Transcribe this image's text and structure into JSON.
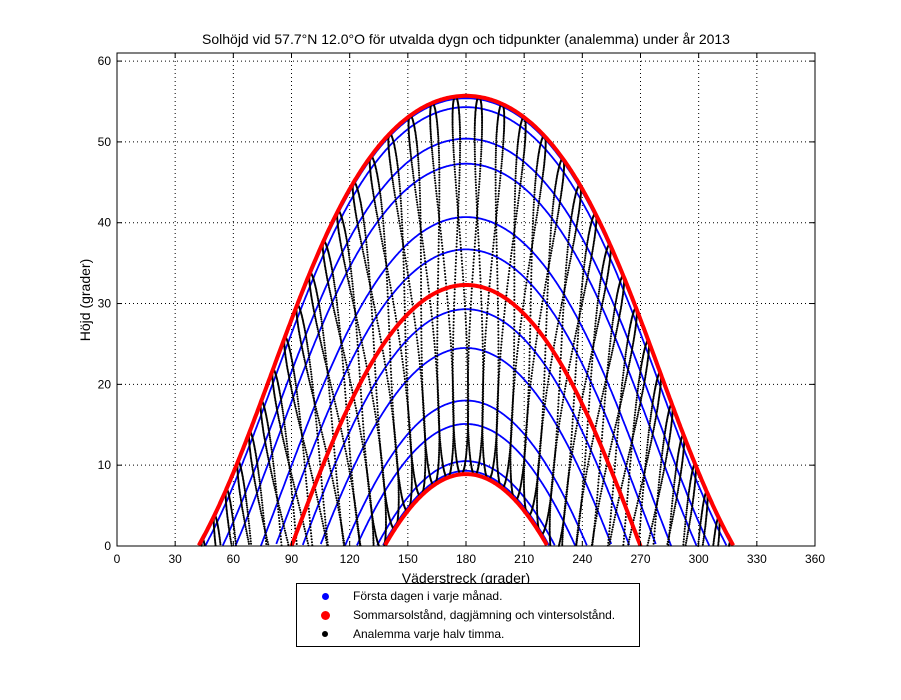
{
  "chart_data": {
    "type": "line",
    "title": "Solhöjd vid 57.7°N 12.0°O för utvalda dygn och tidpunkter (analemma) under år 2013",
    "xlabel": "Väderstreck (grader)",
    "ylabel": "Höjd (grader)",
    "xlim": [
      0,
      360
    ],
    "ylim": [
      0,
      61
    ],
    "xticks": [
      "0",
      "30",
      "60",
      "90",
      "120",
      "150",
      "180",
      "210",
      "240",
      "270",
      "300",
      "330",
      "360"
    ],
    "yticks": [
      "0",
      "10",
      "20",
      "30",
      "40",
      "50",
      "60"
    ],
    "grid": true,
    "legend_position": "below",
    "latitude": 57.7,
    "longitude": 12.0,
    "year": 2013,
    "series": [
      {
        "name": "Första dagen i varje månad.",
        "color": "#0000ff",
        "noon_altitudes": [
          9.3,
          15.1,
          24.5,
          36.7,
          47.3,
          54.3,
          55.4,
          50.4,
          40.7,
          29.3,
          18.0,
          10.5
        ]
      },
      {
        "name": "Sommarsolstånd, dagjämning och vintersolstånd.",
        "color": "#ff0000",
        "noon_altitudes": [
          55.7,
          32.3,
          8.9
        ]
      },
      {
        "name": "Analemma varje halv timma.",
        "color": "#000000",
        "interval_minutes": 30
      }
    ]
  }
}
